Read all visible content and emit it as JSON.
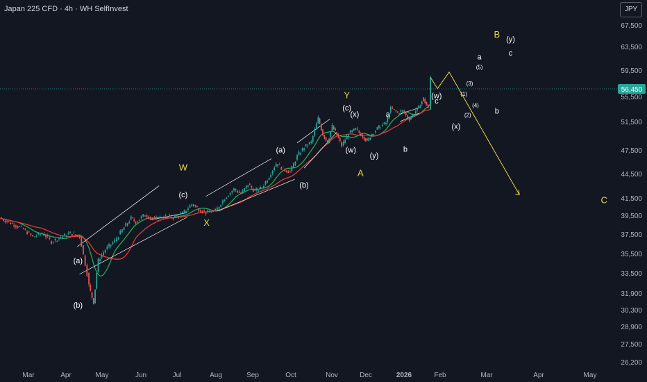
{
  "header": {
    "title": "Japan 225 CFD · 4h · WH SelfInvest"
  },
  "currency_button": "JPY",
  "colors": {
    "background": "#131722",
    "axis_text": "#b2b5be",
    "up_candle": "#26a69a",
    "down_candle": "#ef5350",
    "ma_red": "#e53935",
    "ma_green": "#22ab57",
    "wave_yellow": "#e6d84a",
    "label_white": "#ffffff",
    "price_line": "#26a69a",
    "channel": "#e0e0e0"
  },
  "chart_data": {
    "type": "line",
    "title": "Japan 225 CFD · 4h · WH SelfInvest",
    "y_ticks": [
      "67,500",
      "63,500",
      "59,500",
      "55,500",
      "51,500",
      "47,500",
      "44,500",
      "41,500",
      "39,500",
      "37,500",
      "35,500",
      "33,500",
      "31,900",
      "30,300",
      "28,900",
      "27,500",
      "26,200"
    ],
    "x_ticks": [
      "Mar",
      "Apr",
      "May",
      "Jun",
      "Jul",
      "Aug",
      "Sep",
      "Oct",
      "Nov",
      "Dec",
      "2026",
      "Feb",
      "Mar",
      "Apr",
      "May"
    ],
    "current_price": "56,450",
    "price_path": [
      [
        0,
        39200
      ],
      [
        6,
        38500
      ],
      [
        10,
        38000
      ],
      [
        14,
        37200
      ],
      [
        18,
        37600
      ],
      [
        22,
        36700
      ],
      [
        26,
        37200
      ],
      [
        30,
        37600
      ],
      [
        34,
        37300
      ],
      [
        38,
        32500
      ],
      [
        40,
        31000
      ],
      [
        42,
        34800
      ],
      [
        45,
        35900
      ],
      [
        49,
        36800
      ],
      [
        53,
        38200
      ],
      [
        56,
        39200
      ],
      [
        58,
        38800
      ],
      [
        62,
        39600
      ],
      [
        66,
        39000
      ],
      [
        70,
        39400
      ],
      [
        74,
        39300
      ],
      [
        78,
        39700
      ],
      [
        82,
        40800
      ],
      [
        85,
        40200
      ],
      [
        88,
        39800
      ],
      [
        92,
        40000
      ],
      [
        96,
        41500
      ],
      [
        100,
        42600
      ],
      [
        103,
        42000
      ],
      [
        106,
        43200
      ],
      [
        109,
        42300
      ],
      [
        112,
        42800
      ],
      [
        115,
        44200
      ],
      [
        118,
        45800
      ],
      [
        121,
        45100
      ],
      [
        124,
        44700
      ],
      [
        127,
        46700
      ],
      [
        130,
        47900
      ],
      [
        133,
        48600
      ],
      [
        136,
        52000
      ],
      [
        138,
        49700
      ],
      [
        140,
        48600
      ],
      [
        142,
        50800
      ],
      [
        144,
        49600
      ],
      [
        146,
        48100
      ],
      [
        149,
        49800
      ],
      [
        152,
        50400
      ],
      [
        155,
        49500
      ],
      [
        157,
        48700
      ],
      [
        159,
        49800
      ],
      [
        162,
        50700
      ],
      [
        165,
        51300
      ],
      [
        167,
        53600
      ],
      [
        170,
        52900
      ],
      [
        172,
        53200
      ],
      [
        173.5,
        52500
      ],
      [
        175,
        51900
      ],
      [
        177,
        52800
      ],
      [
        179,
        53800
      ],
      [
        181,
        55200
      ],
      [
        183,
        53500
      ],
      [
        184,
        58400
      ]
    ],
    "projection": [
      [
        184,
        58400
      ],
      [
        187,
        56700
      ],
      [
        192,
        59200
      ],
      [
        222,
        41900
      ]
    ],
    "waves": [
      {
        "label": "W",
        "x": 94,
        "y": 44900,
        "color": "yellow"
      },
      {
        "label": "X",
        "x": 106,
        "y": 38400,
        "color": "yellow"
      },
      {
        "label": "Y",
        "x": 178,
        "y": 55200,
        "color": "yellow"
      },
      {
        "label": "A",
        "x": 185,
        "y": 44200,
        "color": "yellow"
      },
      {
        "label": "B",
        "x": 255,
        "y": 65200,
        "color": "yellow"
      },
      {
        "label": "C",
        "x": 310,
        "y": 40900,
        "color": "yellow"
      },
      {
        "label": "(c)",
        "x": 94,
        "y": 41600,
        "color": "white"
      },
      {
        "label": "(a)",
        "x": 40,
        "y": 34500,
        "color": "white"
      },
      {
        "label": "(b)",
        "x": 40,
        "y": 30500,
        "color": "white"
      },
      {
        "label": "(a)",
        "x": 144,
        "y": 47200,
        "color": "white"
      },
      {
        "label": "(b)",
        "x": 156,
        "y": 42800,
        "color": "white"
      },
      {
        "label": "(c)",
        "x": 178,
        "y": 53300,
        "color": "white"
      },
      {
        "label": "(x)",
        "x": 182,
        "y": 52300,
        "color": "white"
      },
      {
        "label": "(w)",
        "x": 180,
        "y": 47200,
        "color": "white"
      },
      {
        "label": "(y)",
        "x": 192,
        "y": 46500,
        "color": "white"
      },
      {
        "label": "a",
        "x": 199,
        "y": 52300,
        "color": "white"
      },
      {
        "label": "b",
        "x": 208,
        "y": 47300,
        "color": "white"
      },
      {
        "label": "(w)",
        "x": 224,
        "y": 55200,
        "color": "white"
      },
      {
        "label": "c",
        "x": 224,
        "y": 54400,
        "color": "white"
      },
      {
        "label": "(x)",
        "x": 234,
        "y": 50500,
        "color": "white"
      },
      {
        "label": "(1)",
        "x": 238,
        "y": 55600,
        "color": "white",
        "small": true
      },
      {
        "label": "(2)",
        "x": 240,
        "y": 52200,
        "color": "white",
        "small": true
      },
      {
        "label": "(3)",
        "x": 241,
        "y": 57200,
        "color": "white",
        "small": true
      },
      {
        "label": "(4)",
        "x": 244,
        "y": 53800,
        "color": "white",
        "small": true
      },
      {
        "label": "(5)",
        "x": 246,
        "y": 59700,
        "color": "white",
        "small": true
      },
      {
        "label": "a",
        "x": 246,
        "y": 61300,
        "color": "white"
      },
      {
        "label": "b",
        "x": 255,
        "y": 52800,
        "color": "white"
      },
      {
        "label": "(y)",
        "x": 262,
        "y": 64400,
        "color": "white"
      },
      {
        "label": "c",
        "x": 262,
        "y": 62000,
        "color": "white"
      }
    ],
    "grid": false
  }
}
